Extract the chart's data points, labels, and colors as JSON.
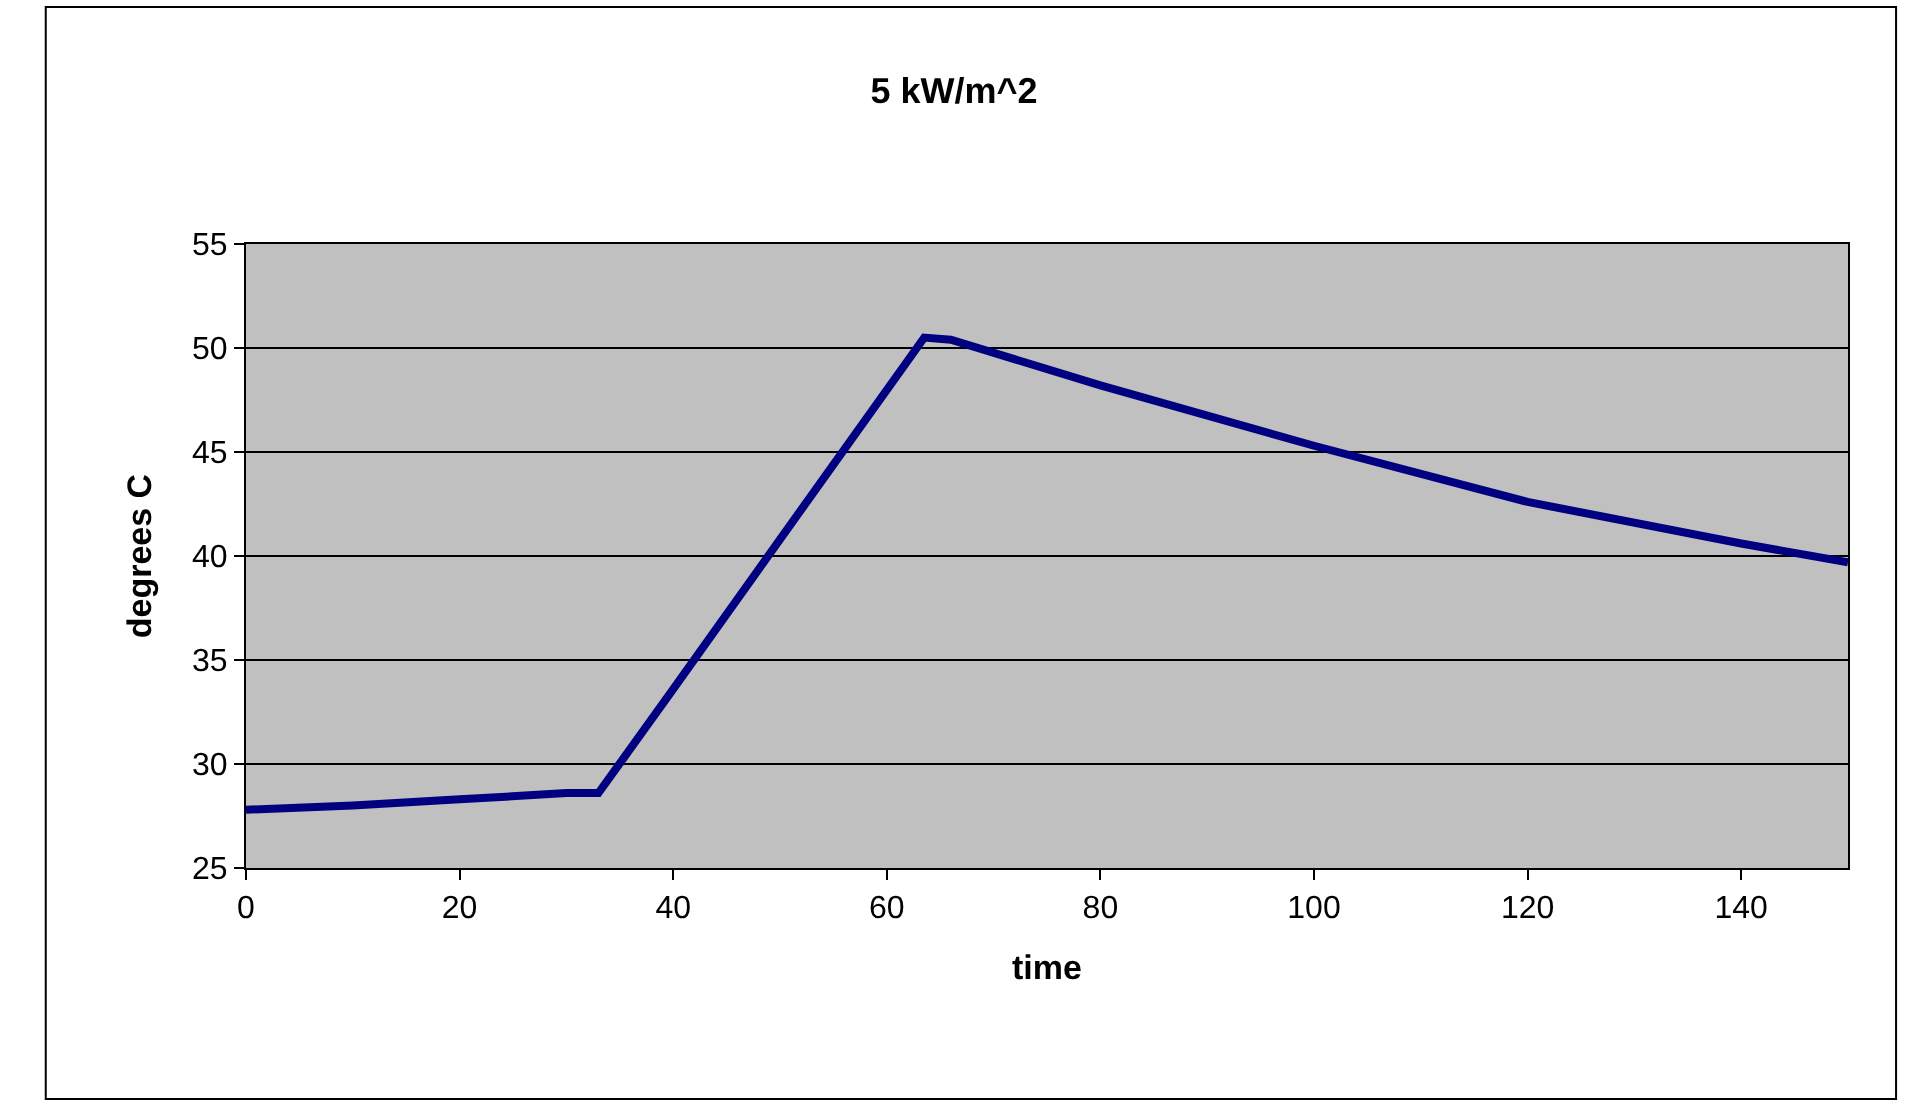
{
  "chart_data": {
    "type": "line",
    "title": "5 kW/m^2",
    "xlabel": "time",
    "ylabel": "degrees C",
    "x": [
      0,
      10,
      20,
      30,
      33,
      40,
      50,
      63.5,
      66,
      80,
      100,
      120,
      140,
      150
    ],
    "series": [
      {
        "color": "#000080",
        "values": [
          27.8,
          28.0,
          28.3,
          28.6,
          28.6,
          33.6,
          40.8,
          50.5,
          50.4,
          48.2,
          45.3,
          42.6,
          40.6,
          39.7
        ]
      }
    ],
    "xlim": [
      0,
      150
    ],
    "xticks": [
      0,
      20,
      40,
      60,
      80,
      100,
      120,
      140
    ],
    "ylim": [
      25,
      55
    ],
    "yticks": [
      25,
      30,
      35,
      40,
      45,
      50,
      55
    ],
    "grid": "y",
    "marker": "none",
    "line_style": "solid"
  }
}
